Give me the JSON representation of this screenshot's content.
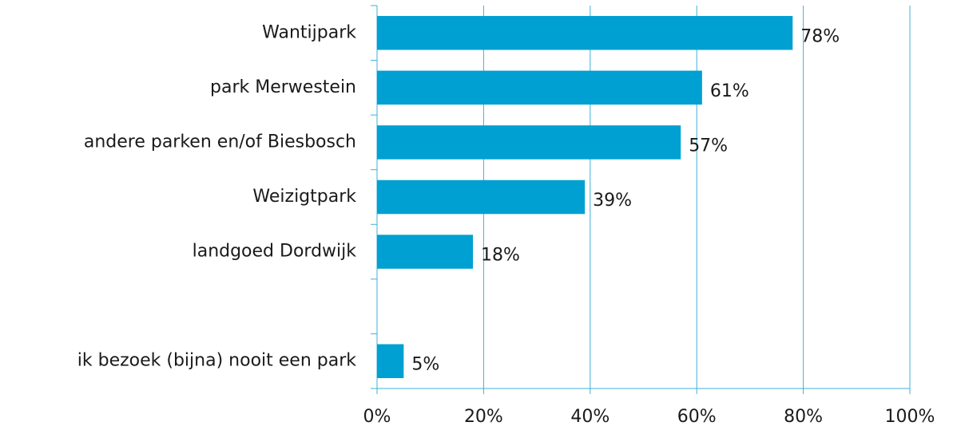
{
  "chart_data": {
    "type": "bar",
    "orientation": "horizontal",
    "categories": [
      "Wantijpark",
      "park Merwestein",
      "andere parken en/of Biesbosch",
      "Weizigtpark",
      "landgoed Dordwijk",
      null,
      "ik bezoek (bijna) nooit een park"
    ],
    "values": [
      78,
      61,
      57,
      39,
      18,
      null,
      5
    ],
    "value_labels": [
      "78%",
      "61%",
      "57%",
      "39%",
      "18%",
      null,
      "5%"
    ],
    "color": "#00a0d2",
    "xlim": [
      0,
      100
    ],
    "xticks": [
      {
        "value": 0,
        "label": "0%"
      },
      {
        "value": 20,
        "label": "20%"
      },
      {
        "value": 40,
        "label": "40%"
      },
      {
        "value": 60,
        "label": "60%"
      },
      {
        "value": 80,
        "label": "80%"
      },
      {
        "value": 100,
        "label": "100%"
      }
    ],
    "grid": true
  }
}
